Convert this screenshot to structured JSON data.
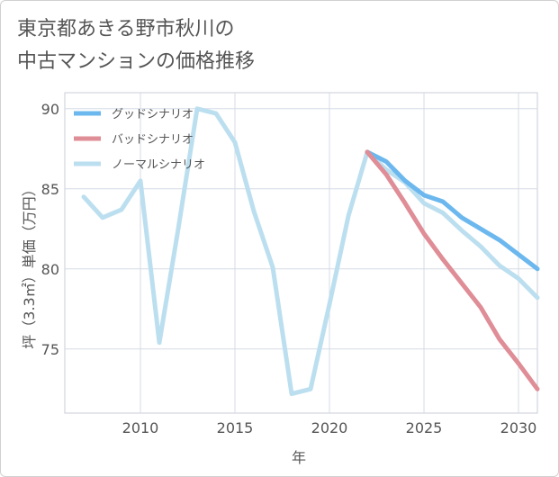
{
  "title_line1": "東京都あきる野市秋川の",
  "title_line2": "中古マンションの価格推移",
  "chart_data": {
    "type": "line",
    "title": "東京都あきる野市秋川の中古マンションの価格推移",
    "xlabel": "年",
    "ylabel": "坪（3.3㎡）単価（万円）",
    "xlim": [
      2006,
      2031
    ],
    "ylim": [
      71,
      91
    ],
    "x_ticks": [
      2010,
      2015,
      2020,
      2025,
      2030
    ],
    "y_ticks": [
      75,
      80,
      85,
      90
    ],
    "grid": true,
    "legend_position": "top-left",
    "series": [
      {
        "name": "グッドシナリオ",
        "color": "#6cb8ee",
        "x": [
          2022,
          2023,
          2024,
          2025,
          2026,
          2027,
          2028,
          2029,
          2030,
          2031
        ],
        "values": [
          87.3,
          86.7,
          85.5,
          84.6,
          84.2,
          83.2,
          82.5,
          81.8,
          80.9,
          80.0
        ]
      },
      {
        "name": "バッドシナリオ",
        "color": "#df8d96",
        "x": [
          2022,
          2023,
          2024,
          2025,
          2026,
          2027,
          2028,
          2029,
          2030,
          2031
        ],
        "values": [
          87.3,
          85.9,
          84.1,
          82.2,
          80.6,
          79.1,
          77.6,
          75.6,
          74.1,
          72.5
        ]
      },
      {
        "name": "ノーマルシナリオ",
        "color": "#bcdff0",
        "x": [
          2007,
          2008,
          2009,
          2010,
          2011,
          2012,
          2013,
          2014,
          2015,
          2016,
          2017,
          2018,
          2019,
          2020,
          2021,
          2022,
          2023,
          2024,
          2025,
          2026,
          2027,
          2028,
          2029,
          2030,
          2031
        ],
        "values": [
          84.5,
          83.2,
          83.7,
          85.5,
          75.4,
          82.5,
          90.0,
          89.7,
          87.9,
          83.6,
          80.1,
          72.2,
          72.5,
          77.8,
          83.3,
          87.3,
          86.2,
          85.4,
          84.1,
          83.5,
          82.4,
          81.4,
          80.2,
          79.4,
          78.2
        ]
      }
    ]
  }
}
